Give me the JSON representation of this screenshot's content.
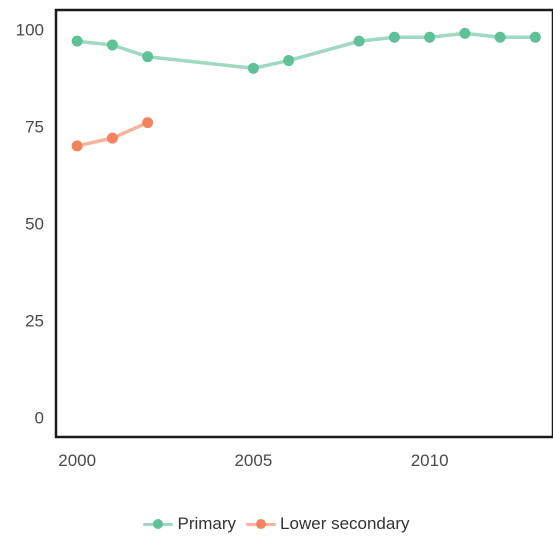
{
  "chart_data": {
    "type": "line",
    "title": "",
    "xlabel": "",
    "ylabel": "",
    "xlim": [
      1999.4,
      2013.5
    ],
    "ylim": [
      -4,
      104
    ],
    "x_ticks": [
      2000,
      2005,
      2010
    ],
    "x_tick_labels": [
      "2000",
      "2005",
      "2010"
    ],
    "y_ticks": [
      0,
      25,
      50,
      75,
      100
    ],
    "y_tick_labels": [
      "0",
      "25",
      "50",
      "75",
      "100"
    ],
    "grid": false,
    "legend_position": "bottom",
    "series": [
      {
        "name": "Primary",
        "color": "#5fc19a",
        "line_color": "#9fd9c2",
        "points": [
          {
            "x": 2000,
            "y": 97
          },
          {
            "x": 2001,
            "y": 96
          },
          {
            "x": 2002,
            "y": 93
          },
          {
            "x": 2005,
            "y": 90
          },
          {
            "x": 2006,
            "y": 92
          },
          {
            "x": 2008,
            "y": 97
          },
          {
            "x": 2009,
            "y": 98
          },
          {
            "x": 2010,
            "y": 98
          },
          {
            "x": 2011,
            "y": 99
          },
          {
            "x": 2012,
            "y": 98
          },
          {
            "x": 2013,
            "y": 98
          }
        ]
      },
      {
        "name": "Lower secondary",
        "color": "#f4845f",
        "line_color": "#f7b39b",
        "points": [
          {
            "x": 2000,
            "y": 70
          },
          {
            "x": 2001,
            "y": 72
          },
          {
            "x": 2002,
            "y": 76
          }
        ]
      }
    ]
  },
  "legend": {
    "items": [
      {
        "label": "Primary",
        "color": "#5fc19a",
        "line_color": "#9fd9c2"
      },
      {
        "label": "Lower secondary",
        "color": "#f4845f",
        "line_color": "#f7b39b"
      }
    ]
  }
}
